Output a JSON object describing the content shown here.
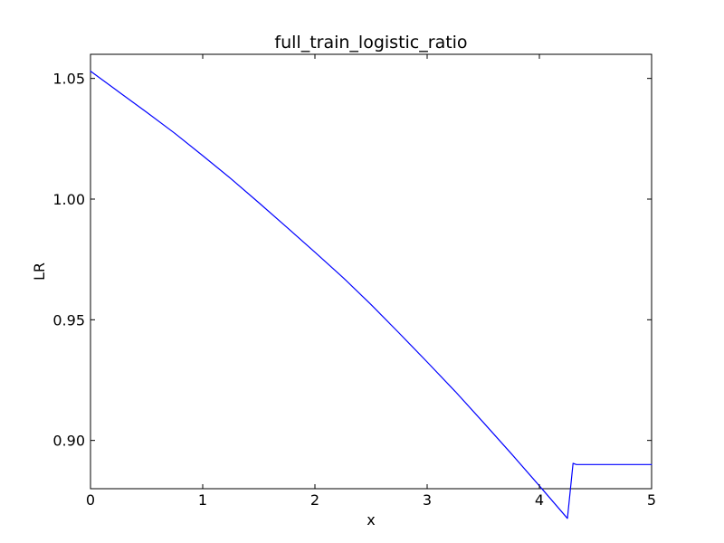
{
  "chart_data": {
    "type": "line",
    "title": "full_train_logistic_ratio",
    "xlabel": "x",
    "ylabel": "LR",
    "xlim": [
      0,
      5
    ],
    "ylim": [
      0.88,
      1.06
    ],
    "xticks": [
      0,
      1,
      2,
      3,
      4,
      5
    ],
    "xtick_labels": [
      "0",
      "1",
      "2",
      "3",
      "4",
      "5"
    ],
    "yticks": [
      0.9,
      0.95,
      1.0,
      1.05
    ],
    "ytick_labels": [
      "0.90",
      "0.95",
      "1.00",
      "1.05"
    ],
    "grid": false,
    "series": [
      {
        "color": "#0000ff",
        "x": [
          0,
          0.25,
          0.5,
          0.75,
          1.0,
          1.25,
          1.5,
          1.75,
          2.0,
          2.25,
          2.5,
          2.75,
          3.0,
          3.25,
          3.5,
          3.75,
          4.0,
          4.25,
          4.3,
          4.33,
          4.5,
          4.75,
          5.0
        ],
        "y": [
          1.053,
          1.0445,
          1.036,
          1.0273,
          1.018,
          1.0085,
          0.9985,
          0.9883,
          0.978,
          0.9675,
          0.9563,
          0.9445,
          0.9325,
          0.9203,
          0.9075,
          0.8945,
          0.8812,
          0.8677,
          0.8905,
          0.89,
          0.89,
          0.89,
          0.89
        ]
      }
    ]
  }
}
